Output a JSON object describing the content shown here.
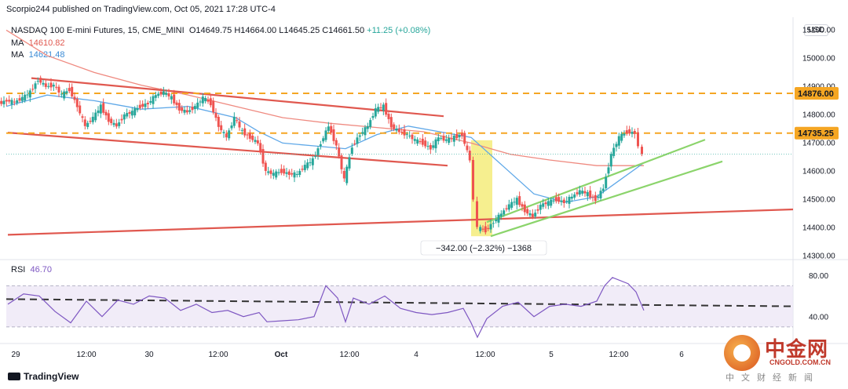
{
  "header": {
    "published_line": "Scorpio244 published on TradingView.com, Oct 05, 2021 17:28 UTC-4",
    "symbol": "NASDAQ 100 E-mini Futures, 15, CME_MINI",
    "ohlc": {
      "o": "O14649.75",
      "h": "H14664.00",
      "l": "L14645.25",
      "c": "C14661.50",
      "chg": "+11.25 (+0.08%)"
    },
    "ma1": {
      "label": "MA",
      "value": "14610.82",
      "color": "#e0584f"
    },
    "ma2": {
      "label": "MA",
      "value": "14621.48",
      "color": "#3b8bd5"
    },
    "currency": "USD"
  },
  "rsi": {
    "label": "RSI",
    "value": "46.70",
    "line_color": "#7e57c2",
    "band_fill": "#ede7f6",
    "ticks": [
      "80.00",
      "40.00"
    ]
  },
  "footer": {
    "brand": "TradingView"
  },
  "watermark": {
    "chinese": "中金网",
    "url": "CNGOLD.COM.CN",
    "sub": "中文财经新闻"
  },
  "chart_data": {
    "type": "candlestick",
    "title": "NASDAQ 100 E-mini Futures, 15, CME_MINI",
    "y_axis_ticks": [
      15100,
      15000,
      14900,
      14800,
      14700,
      14600,
      14500,
      14400,
      14300
    ],
    "ylim": [
      14290,
      15140
    ],
    "price_labels": [
      {
        "value": 14876.0,
        "text": "14876.00",
        "color": "#f5a623"
      },
      {
        "value": 14735.25,
        "text": "14735.25",
        "color": "#f5a623"
      }
    ],
    "x_axis_ticks": [
      "29",
      "12:00",
      "30",
      "12:00",
      "Oct",
      "12:00",
      "4",
      "12:00",
      "5",
      "12:00",
      "6"
    ],
    "price_path": [
      [
        0,
        14840
      ],
      [
        10,
        14850
      ],
      [
        20,
        14845
      ],
      [
        30,
        14860
      ],
      [
        40,
        14880
      ],
      [
        50,
        14925
      ],
      [
        60,
        14900
      ],
      [
        70,
        14905
      ],
      [
        80,
        14870
      ],
      [
        90,
        14890
      ],
      [
        100,
        14830
      ],
      [
        110,
        14760
      ],
      [
        120,
        14790
      ],
      [
        130,
        14830
      ],
      [
        140,
        14780
      ],
      [
        150,
        14760
      ],
      [
        160,
        14800
      ],
      [
        170,
        14810
      ],
      [
        180,
        14830
      ],
      [
        190,
        14840
      ],
      [
        200,
        14870
      ],
      [
        210,
        14880
      ],
      [
        220,
        14860
      ],
      [
        230,
        14820
      ],
      [
        240,
        14810
      ],
      [
        250,
        14830
      ],
      [
        260,
        14860
      ],
      [
        270,
        14840
      ],
      [
        280,
        14760
      ],
      [
        290,
        14720
      ],
      [
        300,
        14790
      ],
      [
        310,
        14740
      ],
      [
        320,
        14720
      ],
      [
        330,
        14700
      ],
      [
        340,
        14600
      ],
      [
        350,
        14590
      ],
      [
        360,
        14600
      ],
      [
        370,
        14590
      ],
      [
        380,
        14590
      ],
      [
        390,
        14620
      ],
      [
        400,
        14640
      ],
      [
        410,
        14700
      ],
      [
        420,
        14760
      ],
      [
        430,
        14690
      ],
      [
        440,
        14570
      ],
      [
        450,
        14690
      ],
      [
        460,
        14730
      ],
      [
        470,
        14760
      ],
      [
        480,
        14820
      ],
      [
        490,
        14830
      ],
      [
        500,
        14760
      ],
      [
        510,
        14740
      ],
      [
        520,
        14730
      ],
      [
        530,
        14710
      ],
      [
        540,
        14700
      ],
      [
        550,
        14680
      ],
      [
        560,
        14720
      ],
      [
        570,
        14710
      ],
      [
        580,
        14720
      ],
      [
        590,
        14730
      ],
      [
        600,
        14640
      ],
      [
        605,
        14500
      ],
      [
        610,
        14400
      ],
      [
        620,
        14390
      ],
      [
        630,
        14420
      ],
      [
        640,
        14450
      ],
      [
        650,
        14480
      ],
      [
        660,
        14500
      ],
      [
        670,
        14460
      ],
      [
        680,
        14440
      ],
      [
        690,
        14480
      ],
      [
        700,
        14490
      ],
      [
        710,
        14500
      ],
      [
        720,
        14490
      ],
      [
        730,
        14510
      ],
      [
        740,
        14530
      ],
      [
        750,
        14520
      ],
      [
        760,
        14500
      ],
      [
        770,
        14540
      ],
      [
        780,
        14660
      ],
      [
        790,
        14720
      ],
      [
        800,
        14740
      ],
      [
        810,
        14735
      ],
      [
        815,
        14690
      ],
      [
        820,
        14660
      ]
    ],
    "lines": [
      {
        "name": "channel-top",
        "color": "#e0584f",
        "points": [
          [
            40,
            14930
          ],
          [
            565,
            14795
          ]
        ]
      },
      {
        "name": "channel-bottom",
        "color": "#e0584f",
        "points": [
          [
            10,
            14737
          ],
          [
            570,
            14620
          ]
        ]
      },
      {
        "name": "long-support",
        "color": "#e0584f",
        "points": [
          [
            10,
            14375
          ],
          [
            1010,
            14465
          ]
        ]
      },
      {
        "name": "up-channel-top",
        "color": "#8bd46b",
        "points": [
          [
            620,
            14420
          ],
          [
            898,
            14712
          ]
        ]
      },
      {
        "name": "up-channel-bottom",
        "color": "#8bd46b",
        "points": [
          [
            625,
            14370
          ],
          [
            920,
            14635
          ]
        ]
      },
      {
        "name": "resistance-1",
        "color": "#f5a623",
        "dash": true,
        "points": [
          [
            8,
            14876
          ],
          [
            1010,
            14876
          ]
        ]
      },
      {
        "name": "resistance-2",
        "color": "#f5a623",
        "dash": true,
        "points": [
          [
            8,
            14735.25
          ],
          [
            1010,
            14735.25
          ]
        ]
      }
    ],
    "ma_red_path": [
      [
        8,
        15100
      ],
      [
        60,
        15010
      ],
      [
        120,
        14950
      ],
      [
        180,
        14905
      ],
      [
        240,
        14870
      ],
      [
        300,
        14830
      ],
      [
        360,
        14790
      ],
      [
        420,
        14770
      ],
      [
        480,
        14755
      ],
      [
        540,
        14740
      ],
      [
        600,
        14700
      ],
      [
        650,
        14660
      ],
      [
        700,
        14640
      ],
      [
        760,
        14620
      ],
      [
        820,
        14620
      ]
    ],
    "ma_blue_path": [
      [
        8,
        14830
      ],
      [
        60,
        14870
      ],
      [
        120,
        14850
      ],
      [
        180,
        14820
      ],
      [
        240,
        14830
      ],
      [
        300,
        14790
      ],
      [
        330,
        14740
      ],
      [
        360,
        14700
      ],
      [
        400,
        14690
      ],
      [
        440,
        14680
      ],
      [
        480,
        14730
      ],
      [
        520,
        14760
      ],
      [
        560,
        14740
      ],
      [
        600,
        14720
      ],
      [
        640,
        14620
      ],
      [
        680,
        14520
      ],
      [
        720,
        14490
      ],
      [
        760,
        14510
      ],
      [
        790,
        14570
      ],
      [
        820,
        14630
      ]
    ],
    "highlight_box": {
      "x0": 600,
      "x1": 627,
      "y_top": 14710,
      "y_bottom": 14370,
      "color": "#f3e96a"
    },
    "measure_label": "−342.00 (−2.32%) −1368",
    "rsi_path": [
      [
        10,
        52
      ],
      [
        30,
        62
      ],
      [
        50,
        60
      ],
      [
        70,
        45
      ],
      [
        90,
        34
      ],
      [
        110,
        55
      ],
      [
        130,
        40
      ],
      [
        150,
        56
      ],
      [
        170,
        52
      ],
      [
        190,
        60
      ],
      [
        210,
        58
      ],
      [
        230,
        46
      ],
      [
        250,
        52
      ],
      [
        270,
        44
      ],
      [
        290,
        46
      ],
      [
        310,
        40
      ],
      [
        330,
        44
      ],
      [
        340,
        35
      ],
      [
        360,
        36
      ],
      [
        380,
        37
      ],
      [
        400,
        40
      ],
      [
        415,
        70
      ],
      [
        430,
        58
      ],
      [
        440,
        35
      ],
      [
        450,
        58
      ],
      [
        470,
        52
      ],
      [
        490,
        60
      ],
      [
        510,
        48
      ],
      [
        530,
        44
      ],
      [
        550,
        42
      ],
      [
        570,
        44
      ],
      [
        590,
        48
      ],
      [
        600,
        34
      ],
      [
        608,
        20
      ],
      [
        620,
        38
      ],
      [
        640,
        50
      ],
      [
        660,
        54
      ],
      [
        680,
        40
      ],
      [
        700,
        50
      ],
      [
        720,
        52
      ],
      [
        740,
        50
      ],
      [
        760,
        55
      ],
      [
        770,
        70
      ],
      [
        780,
        78
      ],
      [
        800,
        72
      ],
      [
        810,
        64
      ],
      [
        820,
        46
      ]
    ]
  }
}
